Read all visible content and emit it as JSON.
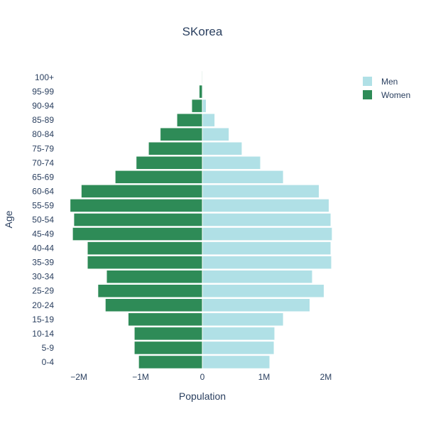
{
  "chart_data": {
    "type": "bar",
    "orientation": "horizontal",
    "title": "SKorea",
    "xlabel": "Population",
    "ylabel": "Age",
    "xlim": [
      -2300000,
      2300000
    ],
    "x_ticks": [
      {
        "value": -2000000,
        "label": "−2M"
      },
      {
        "value": -1000000,
        "label": "−1M"
      },
      {
        "value": 0,
        "label": "0"
      },
      {
        "value": 1000000,
        "label": "1M"
      },
      {
        "value": 2000000,
        "label": "2M"
      }
    ],
    "categories": [
      "0-4",
      "5-9",
      "10-14",
      "15-19",
      "20-24",
      "25-29",
      "30-34",
      "35-39",
      "40-44",
      "45-49",
      "50-54",
      "55-59",
      "60-64",
      "65-69",
      "70-74",
      "75-79",
      "80-84",
      "85-89",
      "90-94",
      "95-99",
      "100+"
    ],
    "series": [
      {
        "name": "Men",
        "color": "#b0e0e6",
        "values": [
          1090000,
          1160000,
          1170000,
          1310000,
          1740000,
          1970000,
          1780000,
          2090000,
          2080000,
          2100000,
          2080000,
          2050000,
          1890000,
          1310000,
          940000,
          640000,
          430000,
          200000,
          60000,
          10000,
          3000
        ]
      },
      {
        "name": "Women",
        "color": "#2e8b57",
        "values": [
          -1030000,
          -1100000,
          -1100000,
          -1200000,
          -1570000,
          -1690000,
          -1550000,
          -1860000,
          -1860000,
          -2100000,
          -2080000,
          -2140000,
          -1960000,
          -1410000,
          -1070000,
          -870000,
          -680000,
          -410000,
          -170000,
          -50000,
          -10000
        ]
      }
    ],
    "legend_position": "top-right",
    "grid": false
  }
}
